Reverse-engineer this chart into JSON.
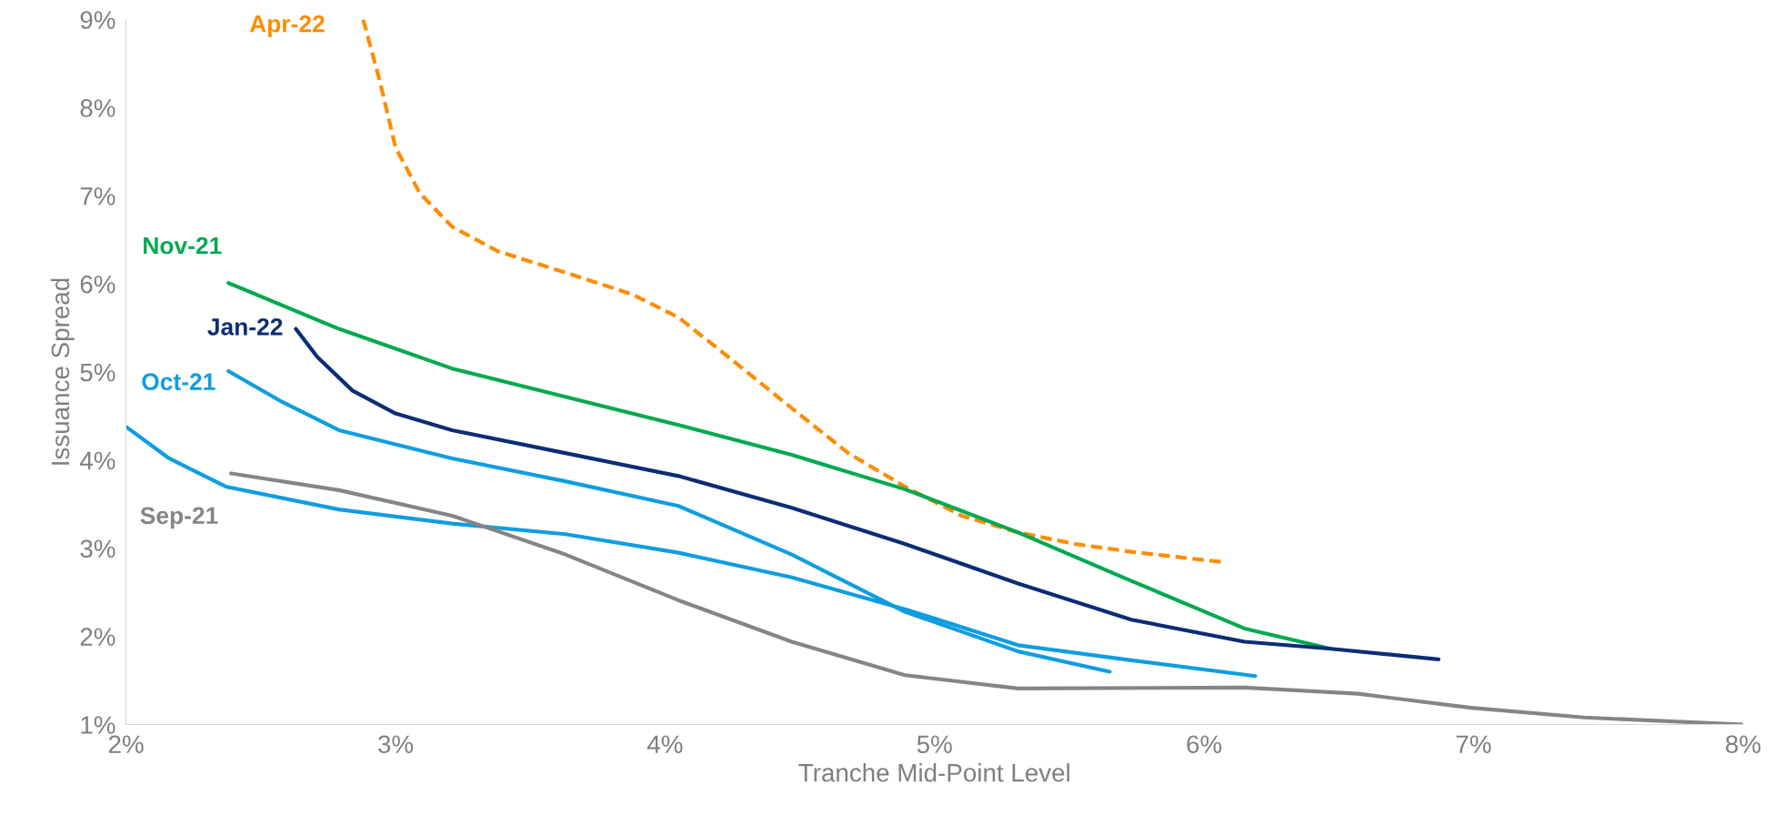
{
  "chart_data": {
    "type": "line",
    "xlabel": "Tranche Mid-Point Level",
    "ylabel": "Issuance Spread",
    "xlim": [
      2,
      8
    ],
    "ylim": [
      1,
      9
    ],
    "xticks": [
      {
        "value": 2,
        "label": "2%"
      },
      {
        "value": 3,
        "label": "3%"
      },
      {
        "value": 4,
        "label": "4%"
      },
      {
        "value": 5,
        "label": "5%"
      },
      {
        "value": 6,
        "label": "6%"
      },
      {
        "value": 7,
        "label": "7%"
      },
      {
        "value": 8,
        "label": "8%"
      }
    ],
    "yticks": [
      {
        "value": 1,
        "label": "1%"
      },
      {
        "value": 2,
        "label": "2%"
      },
      {
        "value": 3,
        "label": "3%"
      },
      {
        "value": 4,
        "label": "4%"
      },
      {
        "value": 5,
        "label": "5%"
      },
      {
        "value": 6,
        "label": "6%"
      },
      {
        "value": 7,
        "label": "7%"
      },
      {
        "value": 8,
        "label": "8%"
      },
      {
        "value": 9,
        "label": "9%"
      }
    ],
    "grid": false,
    "legend": false,
    "marker": "none",
    "series": [
      {
        "name": "Apr-22",
        "color": "#ff8c00",
        "line_style": "dashed",
        "x": [
          2.88,
          2.94,
          3.0,
          3.09,
          3.21,
          3.38,
          3.63,
          3.88,
          4.05,
          4.26,
          4.47,
          4.68,
          4.89,
          5.1,
          5.31,
          5.52,
          5.73,
          6.08
        ],
        "values": [
          9.0,
          8.32,
          7.55,
          7.03,
          6.65,
          6.37,
          6.13,
          5.88,
          5.62,
          5.11,
          4.59,
          4.08,
          3.7,
          3.37,
          3.18,
          3.05,
          2.96,
          2.84
        ]
      },
      {
        "name": "Nov-21",
        "color": "#00a94f",
        "line_style": "solid",
        "x": [
          2.38,
          2.79,
          3.21,
          3.63,
          4.05,
          4.47,
          4.89,
          5.31,
          5.73,
          6.15,
          6.47
        ],
        "values": [
          6.01,
          5.49,
          5.04,
          4.72,
          4.4,
          4.06,
          3.67,
          3.18,
          2.63,
          2.09,
          1.86
        ]
      },
      {
        "name": "Jan-22",
        "color": "#0a2d74",
        "line_style": "solid",
        "x": [
          2.63,
          2.71,
          2.84,
          3.0,
          3.21,
          3.63,
          4.05,
          4.47,
          4.89,
          5.31,
          5.73,
          6.15,
          6.47,
          6.87
        ],
        "values": [
          5.49,
          5.17,
          4.79,
          4.53,
          4.34,
          4.08,
          3.82,
          3.46,
          3.05,
          2.6,
          2.19,
          1.94,
          1.86,
          1.74
        ]
      },
      {
        "name": "Oct-21",
        "color": "#0f9de0",
        "line_style": "solid",
        "x": [
          2.38,
          2.58,
          2.79,
          3.21,
          3.63,
          4.05,
          4.47,
          4.89,
          5.31,
          5.65
        ],
        "values": [
          5.01,
          4.66,
          4.34,
          4.02,
          3.76,
          3.48,
          2.93,
          2.28,
          1.83,
          1.6
        ]
      },
      {
        "color": "#0f9de0",
        "line_style": "solid",
        "x": [
          2.0,
          2.16,
          2.37,
          2.79,
          3.21,
          3.63,
          4.05,
          4.47,
          4.89,
          5.31,
          5.73,
          6.19
        ],
        "values": [
          4.38,
          4.02,
          3.7,
          3.44,
          3.28,
          3.16,
          2.95,
          2.67,
          2.31,
          1.9,
          1.73,
          1.55
        ]
      },
      {
        "name": "Sep-21",
        "color": "#858585",
        "line_style": "solid",
        "x": [
          2.39,
          2.79,
          3.21,
          3.63,
          4.05,
          4.47,
          4.89,
          5.31,
          6.15,
          6.57,
          6.99,
          7.41,
          8.0
        ],
        "values": [
          3.85,
          3.66,
          3.37,
          2.93,
          2.41,
          1.94,
          1.56,
          1.41,
          1.42,
          1.35,
          1.19,
          1.08,
          1.0
        ]
      }
    ]
  }
}
